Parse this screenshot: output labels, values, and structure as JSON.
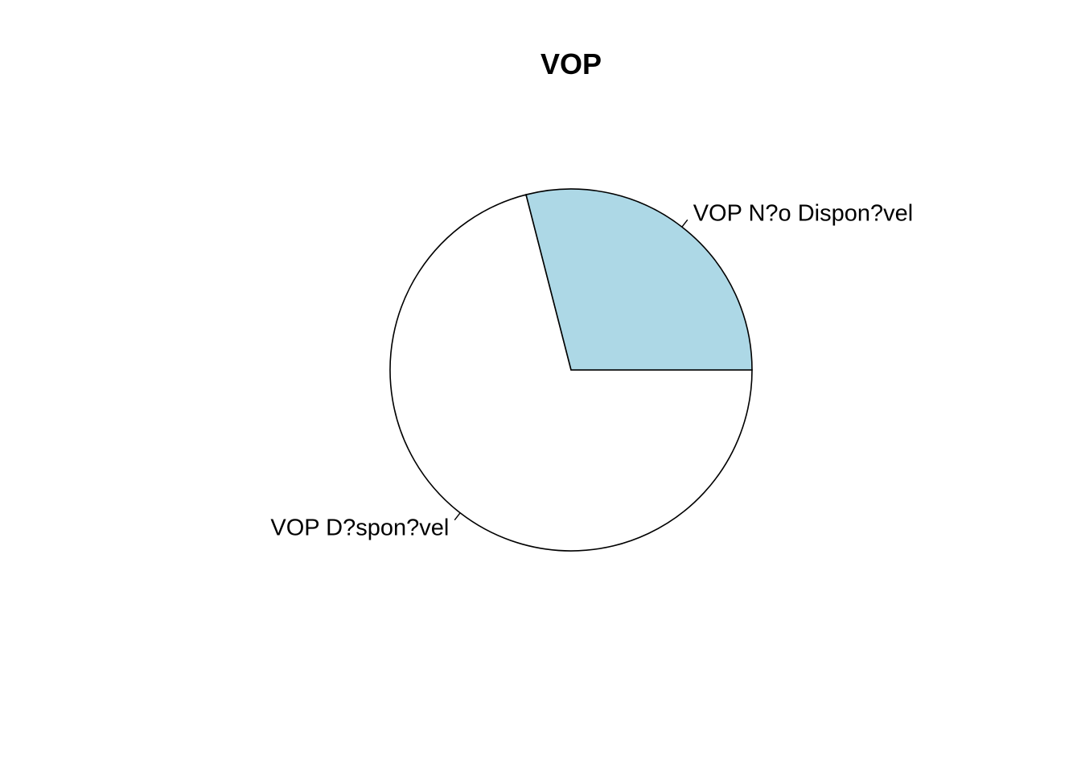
{
  "chart_data": {
    "type": "pie",
    "title": "VOP",
    "slices": [
      {
        "label": "VOP D?spon?vel",
        "value": 71,
        "color": "#ffffff"
      },
      {
        "label": "VOP N?o Dispon?vel",
        "value": 29,
        "color": "#add8e6"
      }
    ],
    "start_angle_deg": 0,
    "direction": "clockwise",
    "border_color": "#000000"
  }
}
